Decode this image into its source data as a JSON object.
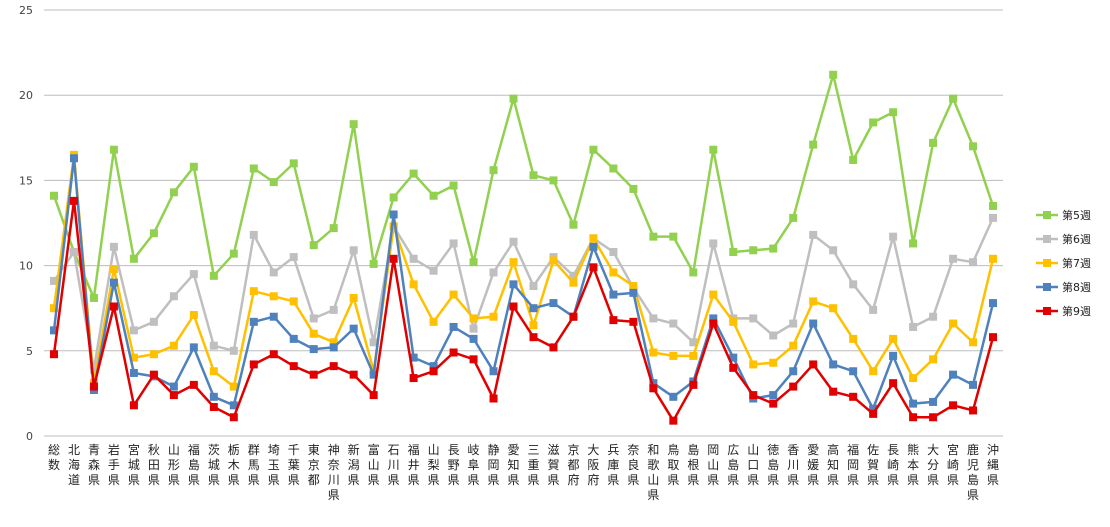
{
  "chart_data": {
    "type": "line",
    "title": "",
    "xlabel": "",
    "ylabel": "",
    "ylim": [
      0,
      25
    ],
    "yticks": [
      0,
      5,
      10,
      15,
      20,
      25
    ],
    "grid": "horizontal",
    "legend_position": "right",
    "categories": [
      "総数",
      "北海道",
      "青森県",
      "岩手県",
      "宮城県",
      "秋田県",
      "山形県",
      "福島県",
      "茨城県",
      "栃木県",
      "群馬県",
      "埼玉県",
      "千葉県",
      "東京都",
      "神奈川県",
      "新潟県",
      "富山県",
      "石川県",
      "福井県",
      "山梨県",
      "長野県",
      "岐阜県",
      "静岡県",
      "愛知県",
      "三重県",
      "滋賀県",
      "京都府",
      "大阪府",
      "兵庫県",
      "奈良県",
      "和歌山県",
      "鳥取県",
      "島根県",
      "岡山県",
      "広島県",
      "山口県",
      "徳島県",
      "香川県",
      "愛媛県",
      "高知県",
      "福岡県",
      "佐賀県",
      "長崎県",
      "熊本県",
      "大分県",
      "宮崎県",
      "鹿児島県",
      "沖縄県"
    ],
    "series": [
      {
        "name": "第5週",
        "color": "#92d050",
        "values": [
          14.1,
          10.8,
          8.1,
          16.8,
          10.4,
          11.9,
          14.3,
          15.8,
          9.4,
          10.7,
          15.7,
          14.9,
          16.0,
          11.2,
          12.2,
          18.3,
          10.1,
          14.0,
          15.4,
          14.1,
          14.7,
          10.2,
          15.6,
          19.8,
          15.3,
          15.0,
          12.4,
          16.8,
          15.7,
          14.5,
          11.7,
          11.7,
          9.6,
          16.8,
          10.8,
          10.9,
          11.0,
          12.8,
          17.1,
          21.2,
          16.2,
          18.4,
          19.0,
          11.3,
          17.2,
          19.8,
          17.0,
          13.5
        ]
      },
      {
        "name": "第6週",
        "color": "#bfbfbf",
        "values": [
          9.1,
          10.8,
          3.9,
          11.1,
          6.2,
          6.7,
          8.2,
          9.5,
          5.3,
          5.0,
          11.8,
          9.6,
          10.5,
          6.9,
          7.4,
          10.9,
          5.5,
          12.3,
          10.4,
          9.7,
          11.3,
          6.3,
          9.6,
          11.4,
          8.8,
          10.5,
          9.4,
          11.6,
          10.8,
          8.7,
          6.9,
          6.6,
          5.5,
          11.3,
          6.9,
          6.9,
          5.9,
          6.6,
          11.8,
          10.9,
          8.9,
          7.4,
          11.7,
          6.4,
          7.0,
          10.4,
          10.2,
          12.8
        ]
      },
      {
        "name": "第7週",
        "color": "#ffc000",
        "values": [
          7.5,
          16.5,
          3.1,
          9.8,
          4.6,
          4.8,
          5.3,
          7.1,
          3.8,
          2.9,
          8.5,
          8.2,
          7.9,
          6.0,
          5.5,
          8.1,
          3.8,
          12.3,
          8.9,
          6.7,
          8.3,
          6.9,
          7.0,
          10.2,
          6.5,
          10.3,
          9.0,
          11.6,
          9.6,
          8.8,
          4.9,
          4.7,
          4.7,
          8.3,
          6.7,
          4.2,
          4.3,
          5.3,
          7.9,
          7.5,
          5.7,
          3.8,
          5.7,
          3.4,
          4.5,
          6.6,
          5.5,
          10.4
        ]
      },
      {
        "name": "第8週",
        "color": "#4f81bd",
        "values": [
          6.2,
          16.3,
          2.7,
          9.0,
          3.7,
          3.5,
          2.9,
          5.2,
          2.3,
          1.8,
          6.7,
          7.0,
          5.7,
          5.1,
          5.2,
          6.3,
          3.6,
          13.0,
          4.6,
          4.1,
          6.4,
          5.7,
          3.8,
          8.9,
          7.5,
          7.8,
          7.0,
          11.1,
          8.3,
          8.4,
          3.1,
          2.3,
          3.2,
          6.9,
          4.6,
          2.2,
          2.4,
          3.8,
          6.6,
          4.2,
          3.8,
          1.6,
          4.7,
          1.9,
          2.0,
          3.6,
          3.0,
          7.8
        ]
      },
      {
        "name": "第9週",
        "color": "#e00000",
        "values": [
          4.8,
          13.8,
          2.9,
          7.6,
          1.8,
          3.6,
          2.4,
          3.0,
          1.7,
          1.1,
          4.2,
          4.8,
          4.1,
          3.6,
          4.1,
          3.6,
          2.4,
          10.4,
          3.4,
          3.8,
          4.9,
          4.5,
          2.2,
          7.6,
          5.8,
          5.2,
          7.0,
          9.9,
          6.8,
          6.7,
          2.8,
          0.9,
          3.0,
          6.6,
          4.0,
          2.4,
          1.9,
          2.9,
          4.2,
          2.6,
          2.3,
          1.3,
          3.1,
          1.1,
          1.1,
          1.8,
          1.5,
          5.8
        ]
      }
    ]
  }
}
